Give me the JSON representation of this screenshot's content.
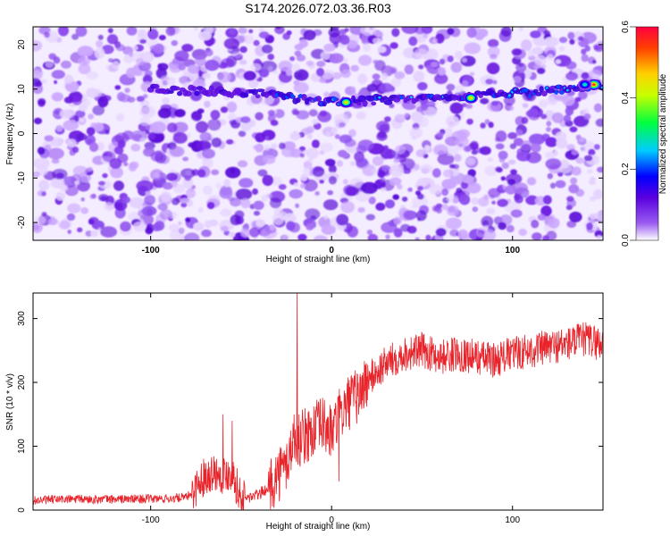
{
  "chart_data": [
    {
      "type": "heatmap",
      "title": "S174.2026.072.03.36.R03",
      "xlabel": "Height of straight line (km)",
      "ylabel": "Frequency (Hz)",
      "xlim": [
        -165,
        150
      ],
      "ylim": [
        -24,
        24
      ],
      "x_ticks": [
        -100,
        0,
        100
      ],
      "y_ticks": [
        -20,
        -10,
        0,
        10,
        20
      ],
      "x_tick_labels": [
        "-100",
        "0",
        "100"
      ],
      "y_tick_labels": [
        "-20",
        "-10",
        "0",
        "10",
        "20"
      ],
      "ridge_frequency_hz": [
        [
          -100,
          10
        ],
        [
          -40,
          9
        ],
        [
          0,
          7
        ],
        [
          60,
          8
        ],
        [
          100,
          9
        ],
        [
          150,
          11
        ]
      ],
      "peaks": [
        {
          "x": 8,
          "freq": 7,
          "amp": 0.45
        },
        {
          "x": 77,
          "freq": 8,
          "amp": 0.45
        },
        {
          "x": 145,
          "freq": 11,
          "amp": 0.55
        },
        {
          "x": 140,
          "freq": 11,
          "amp": 0.3
        }
      ],
      "colorbar": {
        "label": "Normalized spectral amplitude",
        "range": [
          0,
          0.6
        ],
        "ticks": [
          0,
          0.2,
          0.4,
          0.6
        ],
        "tick_labels": [
          "0.0",
          "0.2",
          "0.4",
          "0.6"
        ],
        "colors": [
          "#ffffff",
          "#9a5cf0",
          "#5a00e0",
          "#0000ff",
          "#00ccff",
          "#00ff40",
          "#c8ff00",
          "#ffd000",
          "#ff4000",
          "#ff0040"
        ]
      }
    },
    {
      "type": "line",
      "title": "",
      "xlabel": "Height of straight line (km)",
      "ylabel": "SNR (10 * v/v)",
      "xlim": [
        -165,
        150
      ],
      "ylim": [
        0,
        340
      ],
      "x_ticks": [
        -100,
        0,
        100
      ],
      "y_ticks": [
        0,
        100,
        200,
        300
      ],
      "x_tick_labels": [
        "-100",
        "0",
        "100"
      ],
      "y_tick_labels": [
        "0",
        "100",
        "200",
        "300"
      ],
      "line_color": "#e8232a",
      "series": [
        {
          "name": "SNR",
          "x": [
            -165,
            -150,
            -120,
            -90,
            -80,
            -75,
            -70,
            -65,
            -60,
            -55,
            -50,
            -45,
            -40,
            -35,
            -30,
            -25,
            -22,
            -20,
            -18,
            -15,
            -10,
            -5,
            0,
            5,
            10,
            15,
            20,
            25,
            30,
            40,
            50,
            60,
            70,
            80,
            90,
            100,
            110,
            120,
            130,
            140,
            150
          ],
          "y": [
            15,
            17,
            17,
            18,
            20,
            35,
            55,
            60,
            55,
            60,
            18,
            20,
            25,
            35,
            55,
            70,
            100,
            120,
            110,
            115,
            125,
            135,
            120,
            150,
            170,
            180,
            205,
            215,
            230,
            245,
            250,
            240,
            245,
            240,
            235,
            245,
            250,
            255,
            260,
            268,
            260
          ]
        }
      ],
      "spikes": [
        {
          "x": -60,
          "y": 150
        },
        {
          "x": -55,
          "y": 140
        },
        {
          "x": -19,
          "y": 340
        },
        {
          "x": 4,
          "y": 45
        }
      ]
    }
  ]
}
